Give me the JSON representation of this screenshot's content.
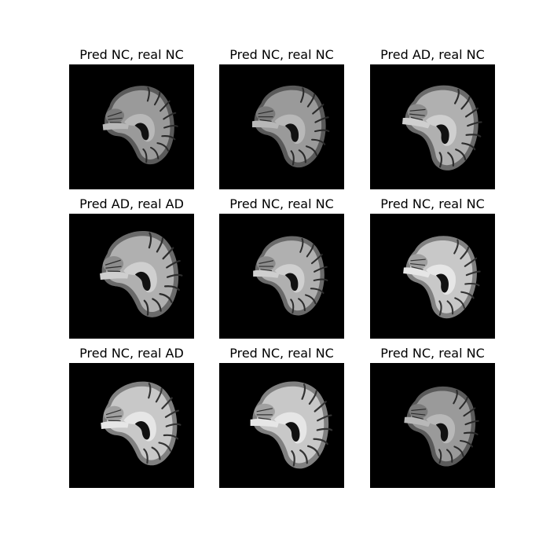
{
  "figure": {
    "panels": [
      {
        "title": "Pred NC, real NC",
        "brightness": "dark"
      },
      {
        "title": "Pred NC, real NC",
        "brightness": "dark"
      },
      {
        "title": "Pred AD, real NC",
        "brightness": "medium"
      },
      {
        "title": "Pred AD, real AD",
        "brightness": "medium"
      },
      {
        "title": "Pred NC, real NC",
        "brightness": "medium"
      },
      {
        "title": "Pred NC, real NC",
        "brightness": "bright"
      },
      {
        "title": "Pred NC, real AD",
        "brightness": "bright"
      },
      {
        "title": "Pred NC, real NC",
        "brightness": "bright"
      },
      {
        "title": "Pred NC, real NC",
        "brightness": "dark"
      }
    ],
    "colors": {
      "background": "#ffffff",
      "scan_background": "#000000"
    }
  }
}
